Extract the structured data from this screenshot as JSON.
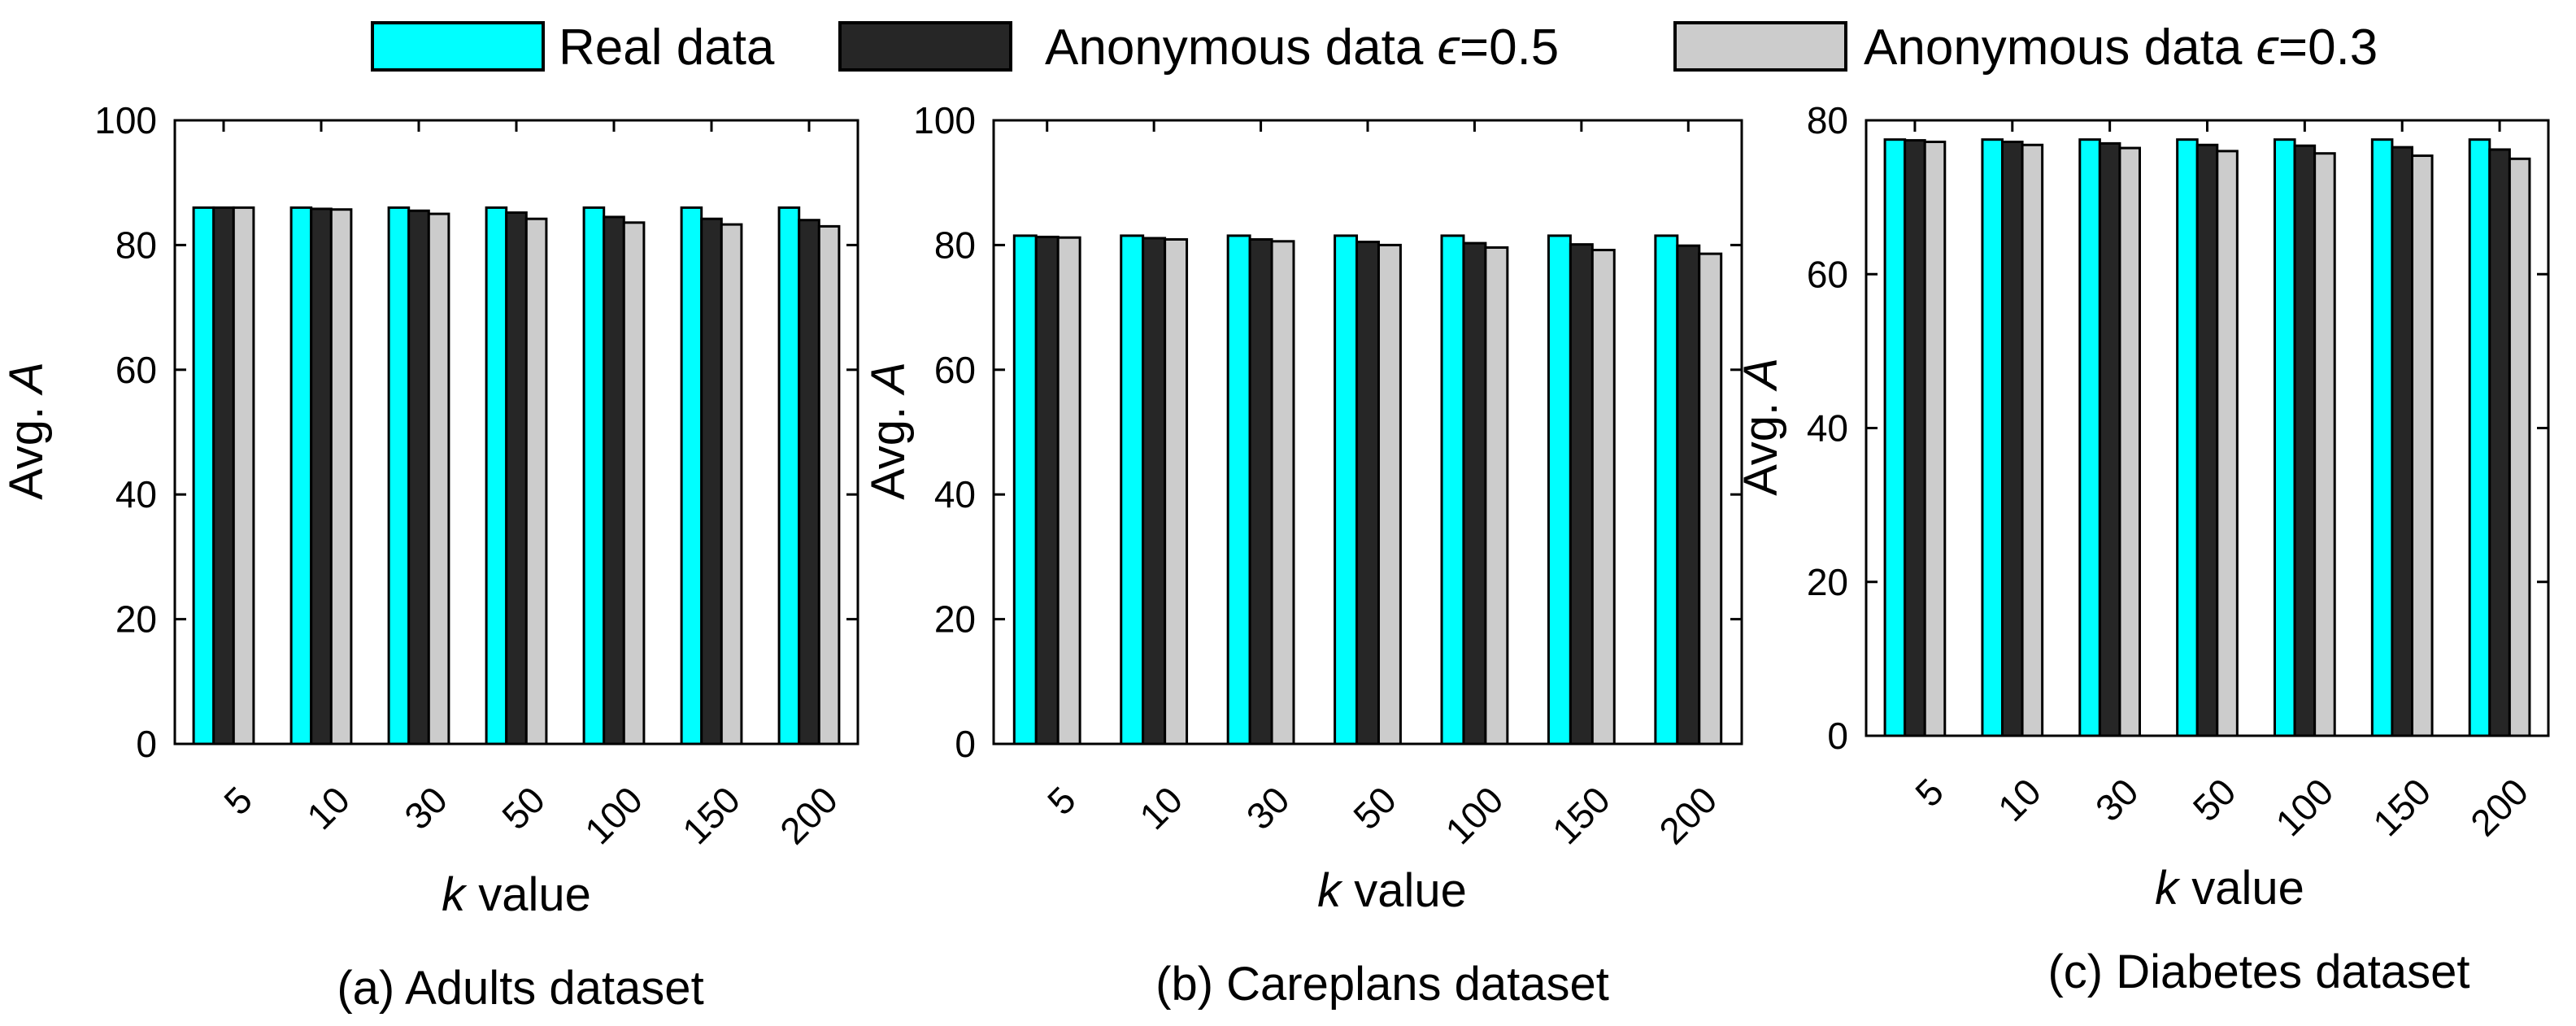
{
  "legend": {
    "items": [
      {
        "label": "Real data",
        "color": "#00FFFF"
      },
      {
        "label": "Anonymous data ",
        "epsilon": "ϵ",
        "value": "=0.5",
        "color": "#262626"
      },
      {
        "label": "Anonymous data ",
        "epsilon": "ϵ",
        "value": "=0.3",
        "color": "#CCCCCC"
      }
    ]
  },
  "chart_data": [
    {
      "type": "bar",
      "caption": "(a) Adults dataset",
      "xlabel_italic": "k",
      "xlabel_rest": " value",
      "ylabel_prefix": "Avg. ",
      "ylabel_italic": "A",
      "categories": [
        "5",
        "10",
        "30",
        "50",
        "100",
        "150",
        "200"
      ],
      "ylim": [
        0,
        100
      ],
      "yticks": [
        0,
        20,
        40,
        60,
        80,
        100
      ],
      "series": [
        {
          "name": "Real data",
          "values": [
            86,
            86,
            86,
            86,
            86,
            86,
            86
          ]
        },
        {
          "name": "Anonymous data ϵ=0.5",
          "values": [
            86,
            85.8,
            85.5,
            85.2,
            84.5,
            84.2,
            84
          ]
        },
        {
          "name": "Anonymous data ϵ=0.3",
          "values": [
            86,
            85.7,
            85,
            84.2,
            83.6,
            83.3,
            83
          ]
        }
      ]
    },
    {
      "type": "bar",
      "caption": "(b) Careplans dataset",
      "xlabel_italic": "k",
      "xlabel_rest": " value",
      "ylabel_prefix": "Avg. ",
      "ylabel_italic": "A",
      "categories": [
        "5",
        "10",
        "30",
        "50",
        "100",
        "150",
        "200"
      ],
      "ylim": [
        0,
        100
      ],
      "yticks": [
        0,
        20,
        40,
        60,
        80,
        100
      ],
      "series": [
        {
          "name": "Real data",
          "values": [
            81.5,
            81.5,
            81.5,
            81.5,
            81.5,
            81.5,
            81.5
          ]
        },
        {
          "name": "Anonymous data ϵ=0.5",
          "values": [
            81.3,
            81.1,
            80.9,
            80.5,
            80.3,
            80.1,
            79.9
          ]
        },
        {
          "name": "Anonymous data ϵ=0.3",
          "values": [
            81.2,
            80.9,
            80.6,
            80,
            79.6,
            79.2,
            78.6
          ]
        }
      ]
    },
    {
      "type": "bar",
      "caption": "(c) Diabetes dataset",
      "xlabel_italic": "k",
      "xlabel_rest": " value",
      "ylabel_prefix": "Avg. ",
      "ylabel_italic": "A",
      "categories": [
        "5",
        "10",
        "30",
        "50",
        "100",
        "150",
        "200"
      ],
      "ylim": [
        0,
        80
      ],
      "yticks": [
        0,
        20,
        40,
        60,
        80
      ],
      "series": [
        {
          "name": "Real data",
          "values": [
            77.5,
            77.5,
            77.5,
            77.5,
            77.5,
            77.5,
            77.5
          ]
        },
        {
          "name": "Anonymous data ϵ=0.5",
          "values": [
            77.4,
            77.2,
            77,
            76.8,
            76.7,
            76.5,
            76.2
          ]
        },
        {
          "name": "Anonymous data ϵ=0.3",
          "values": [
            77.2,
            76.8,
            76.4,
            76,
            75.7,
            75.4,
            75
          ]
        }
      ]
    }
  ]
}
